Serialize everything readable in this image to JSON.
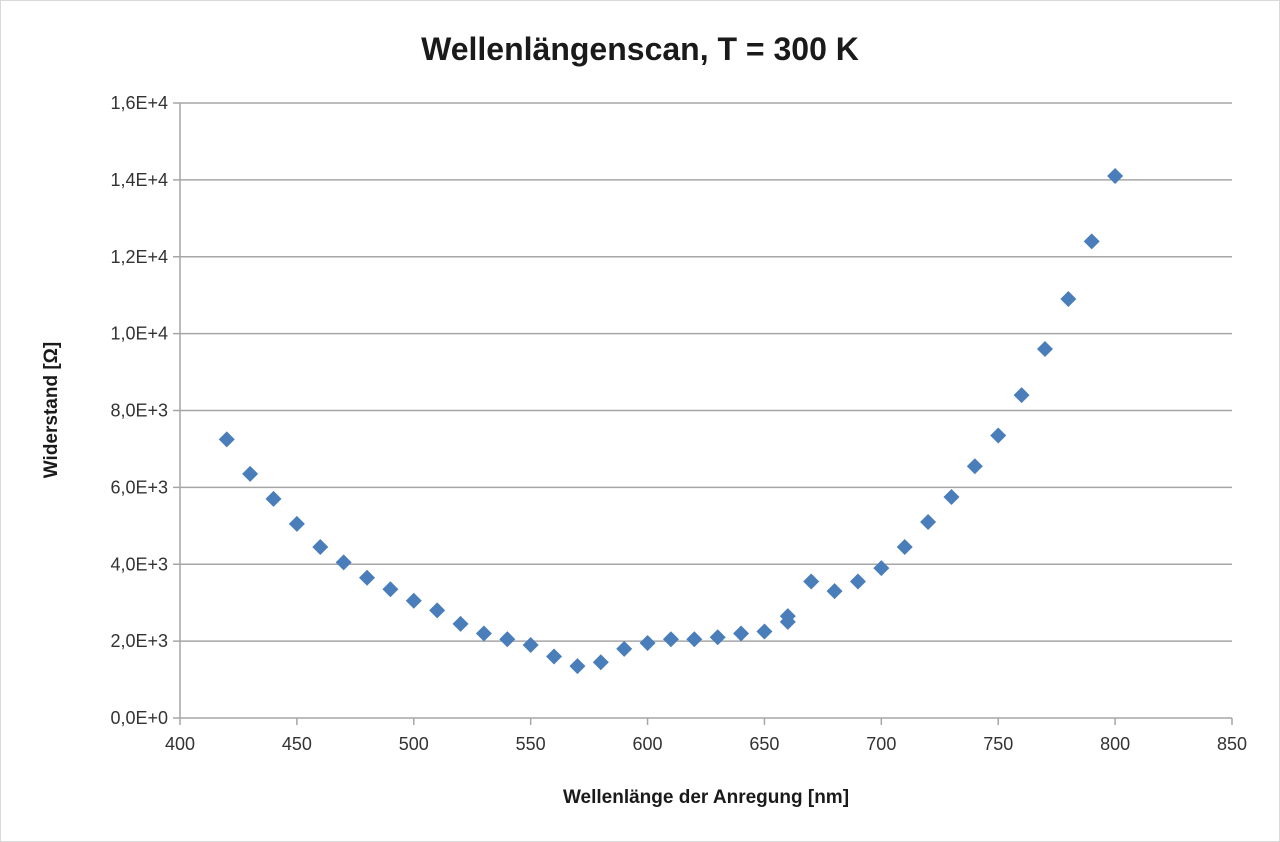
{
  "chart_data": {
    "type": "scatter",
    "title": "Wellenlängenscan, T = 300 K",
    "xlabel": "Wellenlänge der Anregung [nm]",
    "ylabel": "Widerstand [Ω]",
    "xlim": [
      400,
      850
    ],
    "ylim": [
      0,
      16000
    ],
    "x_ticks": [
      400,
      450,
      500,
      550,
      600,
      650,
      700,
      750,
      800,
      850
    ],
    "x_tick_labels": [
      "400",
      "450",
      "500",
      "550",
      "600",
      "650",
      "700",
      "750",
      "800",
      "850"
    ],
    "y_ticks": [
      0,
      2000,
      4000,
      6000,
      8000,
      10000,
      12000,
      14000,
      16000
    ],
    "y_tick_labels": [
      "0,0E+0",
      "2,0E+3",
      "4,0E+3",
      "6,0E+3",
      "8,0E+3",
      "1,0E+4",
      "1,2E+4",
      "1,4E+4",
      "1,6E+4"
    ],
    "grid": true,
    "legend": "none",
    "marker": "diamond",
    "marker_color": "#4a7ebb",
    "series": [
      {
        "x": [
          420,
          430,
          440,
          450,
          460,
          470,
          480,
          490,
          500,
          510,
          520,
          530,
          540,
          550,
          560,
          570,
          580,
          590,
          600,
          610,
          620,
          630,
          640,
          650,
          660,
          660,
          670,
          680,
          690,
          700,
          710,
          720,
          730,
          740,
          750,
          760,
          770,
          780,
          790,
          800
        ],
        "y": [
          7250,
          6350,
          5700,
          5050,
          4450,
          4050,
          3650,
          3350,
          3050,
          2800,
          2450,
          2200,
          2050,
          1900,
          1600,
          1350,
          1450,
          1800,
          1950,
          2050,
          2050,
          2100,
          2200,
          2250,
          2500,
          2650,
          3550,
          3300,
          3550,
          3900,
          4450,
          5100,
          5750,
          6550,
          7350,
          8400,
          9600,
          10900,
          12400,
          14100
        ]
      }
    ]
  }
}
